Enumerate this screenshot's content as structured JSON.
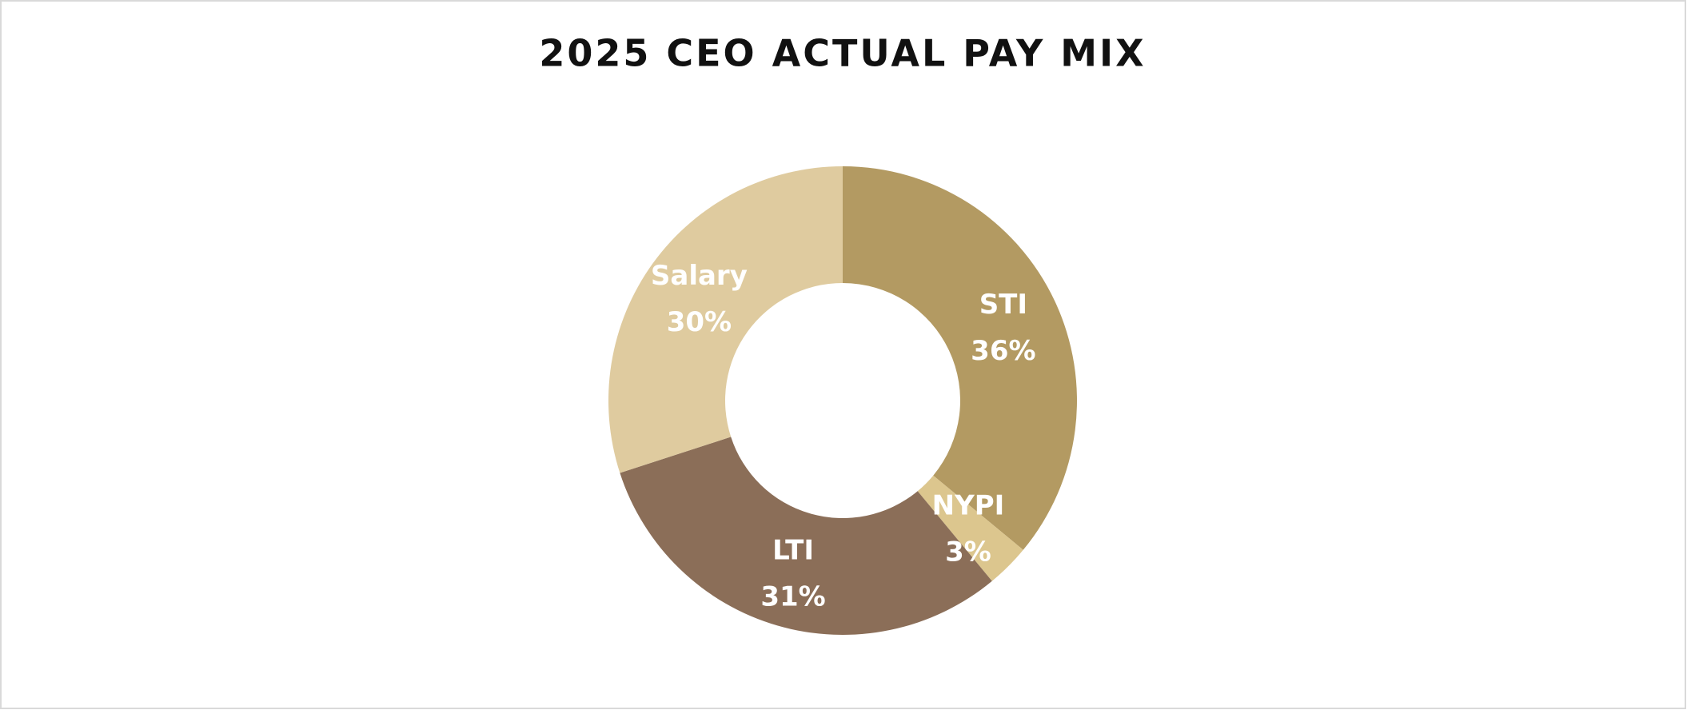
{
  "chart_data": {
    "type": "donut",
    "title": "2025 CEO ACTUAL PAY MIX",
    "categories": [
      "STI",
      "NYPI",
      "LTI",
      "Salary"
    ],
    "values": [
      36,
      3,
      31,
      30
    ],
    "value_labels": [
      "36%",
      "3%",
      "31%",
      "30%"
    ],
    "colors": [
      "#b39a62",
      "#dcc68e",
      "#8b6e58",
      "#dfcb9f"
    ]
  }
}
